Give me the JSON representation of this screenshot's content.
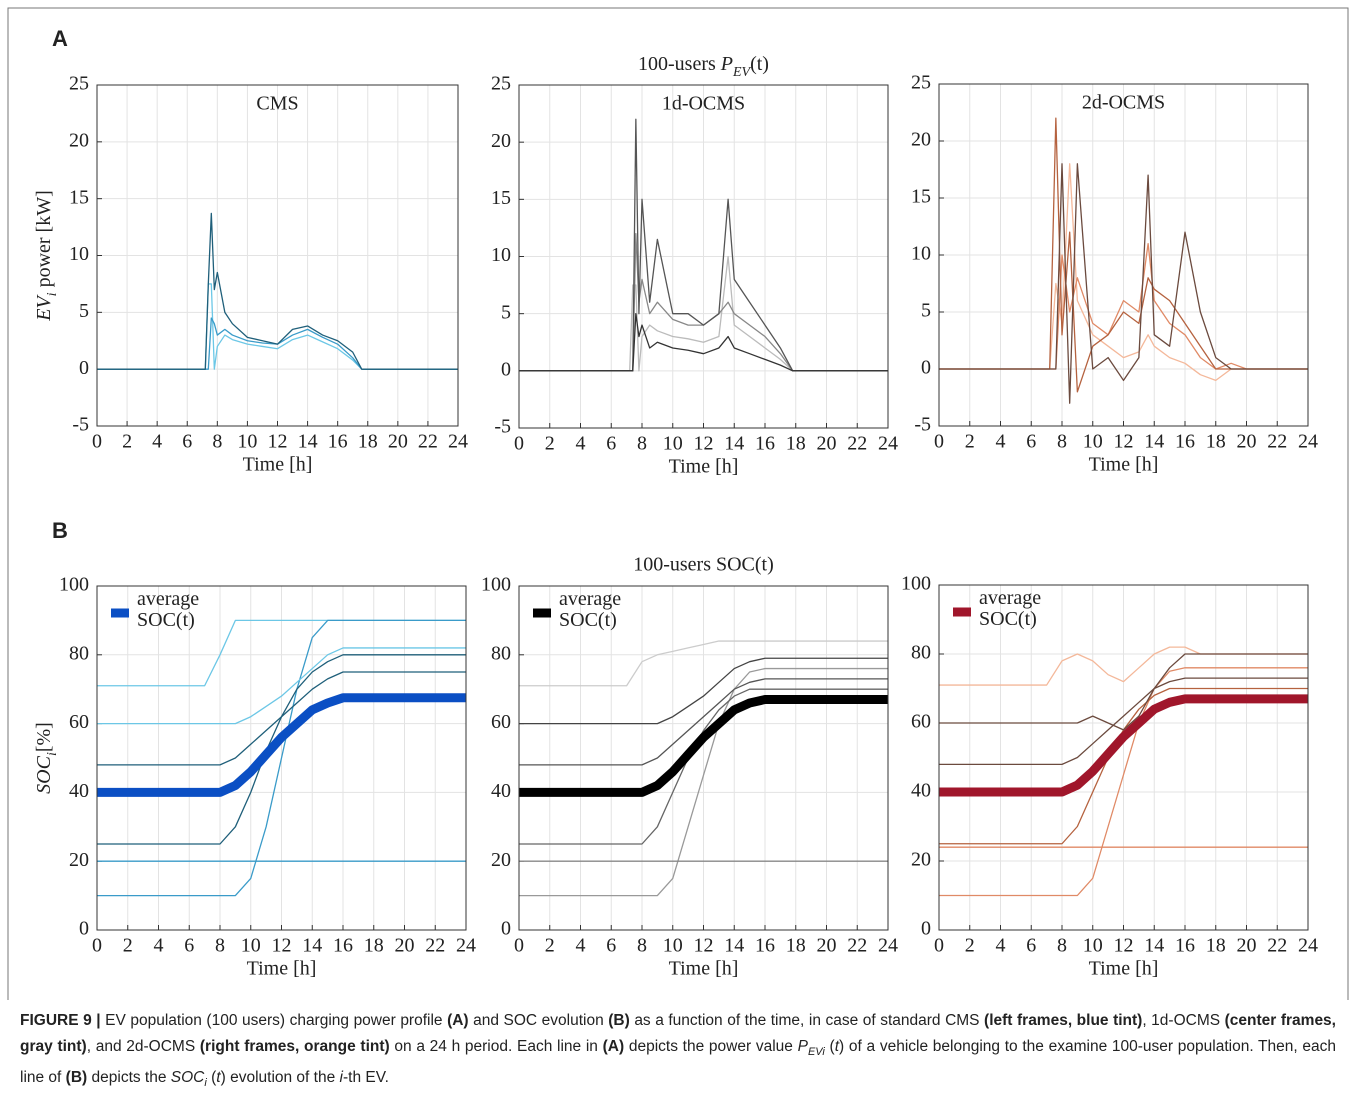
{
  "panel_labels": [
    "A",
    "B"
  ],
  "chart_data": [
    {
      "type": "line",
      "annotation": "CMS",
      "ylabel": [
        {
          "text": "EV",
          "style": "italic"
        },
        {
          "text": "i",
          "style": "sub"
        },
        {
          "text": " power [kW]",
          "style": "normal"
        }
      ],
      "xlabel": "Time [h]",
      "xlim": [
        0,
        24
      ],
      "ylim": [
        -5,
        25
      ],
      "xticks": [
        0,
        2,
        4,
        6,
        8,
        10,
        12,
        14,
        16,
        18,
        20,
        22,
        24
      ],
      "yticks": [
        -5,
        0,
        5,
        10,
        15,
        20,
        25
      ],
      "grid": true,
      "x": [
        0,
        7.2,
        7.4,
        7.6,
        7.8,
        8,
        8.5,
        9,
        10,
        11,
        12,
        13,
        14,
        15,
        16,
        17,
        17.6,
        24
      ],
      "series": [
        {
          "color": "#6cc7e6",
          "values": [
            0,
            0,
            7.5,
            7.5,
            0,
            2,
            3,
            2.6,
            2.2,
            2,
            1.8,
            2.6,
            3,
            2.4,
            1.8,
            0.8,
            0,
            0
          ]
        },
        {
          "color": "#3a9bc9",
          "values": [
            0,
            0,
            0,
            4.5,
            4,
            3,
            3.5,
            3,
            2.5,
            2.3,
            2.2,
            3,
            3.5,
            2.8,
            2.2,
            1,
            0,
            0
          ]
        },
        {
          "color": "#1f5f7a",
          "values": [
            0,
            0,
            7.5,
            13.7,
            7,
            8.5,
            5,
            4,
            2.8,
            2.5,
            2.2,
            3.5,
            3.8,
            3,
            2.5,
            1.5,
            0,
            0
          ]
        }
      ]
    },
    {
      "type": "line",
      "annotation": "1d-OCMS",
      "title": [
        {
          "text": "100-users ",
          "style": "normal"
        },
        {
          "text": "P",
          "style": "italic"
        },
        {
          "text": "EV",
          "style": "sub"
        },
        {
          "text": "(t)",
          "style": "normal"
        }
      ],
      "xlabel": "Time [h]",
      "xlim": [
        0,
        24
      ],
      "ylim": [
        -5,
        25
      ],
      "xticks": [
        0,
        2,
        4,
        6,
        8,
        10,
        12,
        14,
        16,
        18,
        20,
        22,
        24
      ],
      "yticks": [
        -5,
        0,
        5,
        10,
        15,
        20,
        25
      ],
      "grid": true,
      "x": [
        0,
        7.2,
        7.4,
        7.6,
        7.8,
        8,
        8.5,
        9,
        10,
        11,
        12,
        13,
        13.6,
        14,
        15,
        16,
        17,
        17.8,
        24
      ],
      "series": [
        {
          "color": "#bbbbbb",
          "values": [
            0,
            0,
            7.5,
            7.5,
            0,
            3,
            4,
            3.5,
            3,
            2.8,
            2.5,
            3,
            10,
            4,
            3,
            2,
            1,
            0,
            0
          ]
        },
        {
          "color": "#888888",
          "values": [
            0,
            0,
            0,
            12,
            6,
            8,
            5,
            6,
            4.5,
            4,
            4,
            5,
            6,
            5,
            4,
            3,
            1.5,
            0,
            0
          ]
        },
        {
          "color": "#555555",
          "values": [
            0,
            0,
            0,
            22,
            5,
            15,
            6,
            11.5,
            5,
            5,
            4,
            5,
            15,
            8,
            6,
            4,
            2,
            0,
            0
          ]
        },
        {
          "color": "#333333",
          "values": [
            0,
            0,
            0,
            5,
            3,
            4,
            2,
            2.5,
            2,
            1.8,
            1.5,
            2,
            3,
            2,
            1.5,
            1,
            0.5,
            0,
            0
          ]
        }
      ]
    },
    {
      "type": "line",
      "annotation": "2d-OCMS",
      "xlabel": "Time [h]",
      "xlim": [
        0,
        24
      ],
      "ylim": [
        -5,
        25
      ],
      "xticks": [
        0,
        2,
        4,
        6,
        8,
        10,
        12,
        14,
        16,
        18,
        20,
        22,
        24
      ],
      "yticks": [
        -5,
        0,
        5,
        10,
        15,
        20,
        25
      ],
      "grid": true,
      "x": [
        0,
        7.2,
        7.6,
        8,
        8.5,
        9,
        10,
        11,
        12,
        13,
        13.6,
        14,
        15,
        16,
        17,
        18,
        19,
        20,
        24
      ],
      "series": [
        {
          "color": "#f4b89a",
          "values": [
            0,
            0,
            7.5,
            4,
            18,
            6,
            3,
            2,
            1,
            1.5,
            3,
            2,
            1,
            0.5,
            -0.5,
            -1,
            0,
            0,
            0
          ]
        },
        {
          "color": "#e08a66",
          "values": [
            0,
            0,
            0,
            10,
            5,
            8,
            4,
            3,
            6,
            5,
            11,
            6,
            4,
            3,
            1,
            0,
            0.5,
            0,
            0
          ]
        },
        {
          "color": "#b5623f",
          "values": [
            0,
            0,
            22,
            3,
            12,
            -2,
            2,
            3,
            5,
            4,
            8,
            7,
            6,
            4,
            2,
            0,
            0,
            0,
            0
          ]
        },
        {
          "color": "#6b4a3e",
          "values": [
            0,
            0,
            0,
            18,
            -3,
            18,
            0,
            1,
            -1,
            1,
            17,
            3,
            2,
            12,
            5,
            1,
            0,
            0,
            0
          ]
        }
      ]
    },
    {
      "type": "line",
      "ylabel": [
        {
          "text": "SOC",
          "style": "italic"
        },
        {
          "text": "i",
          "style": "sub"
        },
        {
          "text": "[%]",
          "style": "normal"
        }
      ],
      "xlabel": "Time [h]",
      "xlim": [
        0,
        24
      ],
      "ylim": [
        0,
        100
      ],
      "xticks": [
        0,
        2,
        4,
        6,
        8,
        10,
        12,
        14,
        16,
        18,
        20,
        22,
        24
      ],
      "yticks": [
        0,
        20,
        40,
        60,
        80,
        100
      ],
      "grid": true,
      "legend": "upper left",
      "x": [
        0,
        7,
        8,
        9,
        10,
        11,
        12,
        13,
        14,
        15,
        16,
        17,
        18,
        24
      ],
      "series": [
        {
          "color": "#6cc7e6",
          "values": [
            71,
            71,
            80,
            90,
            90,
            90,
            90,
            90,
            90,
            90,
            90,
            90,
            90,
            90
          ]
        },
        {
          "color": "#3a9bc9",
          "values": [
            10,
            10,
            10,
            10,
            15,
            30,
            50,
            70,
            85,
            90,
            90,
            90,
            90,
            90
          ]
        },
        {
          "color": "#1f5f7a",
          "values": [
            25,
            25,
            25,
            30,
            40,
            52,
            62,
            70,
            75,
            78,
            80,
            80,
            80,
            80
          ]
        },
        {
          "color": "#6cc7e6",
          "values": [
            60,
            60,
            60,
            60,
            62,
            65,
            68,
            72,
            76,
            80,
            82,
            82,
            82,
            82
          ]
        },
        {
          "color": "#3a9bc9",
          "values": [
            20,
            20,
            20,
            20,
            20,
            20,
            20,
            20,
            20,
            20,
            20,
            20,
            20,
            20
          ]
        },
        {
          "color": "#1f5f7a",
          "values": [
            48,
            48,
            48,
            50,
            54,
            58,
            62,
            66,
            70,
            73,
            75,
            75,
            75,
            75
          ]
        },
        {
          "color": "#0b4fc4",
          "name": "average SOC(t)",
          "values": [
            40,
            40,
            40,
            42,
            46,
            51,
            56,
            60,
            64,
            66,
            67.5,
            67.5,
            67.5,
            67.5
          ]
        }
      ]
    },
    {
      "type": "line",
      "title": "100-users SOC(t)",
      "xlabel": "Time [h]",
      "xlim": [
        0,
        24
      ],
      "ylim": [
        0,
        100
      ],
      "xticks": [
        0,
        2,
        4,
        6,
        8,
        10,
        12,
        14,
        16,
        18,
        20,
        22,
        24
      ],
      "yticks": [
        0,
        20,
        40,
        60,
        80,
        100
      ],
      "grid": true,
      "legend": "upper left",
      "x": [
        0,
        7,
        8,
        9,
        10,
        11,
        12,
        13,
        14,
        15,
        16,
        17,
        18,
        24
      ],
      "series": [
        {
          "color": "#cccccc",
          "values": [
            71,
            71,
            78,
            80,
            81,
            82,
            83,
            84,
            84,
            84,
            84,
            84,
            84,
            84
          ]
        },
        {
          "color": "#999999",
          "values": [
            10,
            10,
            10,
            10,
            15,
            30,
            45,
            60,
            70,
            75,
            76,
            76,
            76,
            76
          ]
        },
        {
          "color": "#666666",
          "values": [
            25,
            25,
            25,
            30,
            40,
            50,
            58,
            64,
            68,
            70,
            70,
            70,
            70,
            70
          ]
        },
        {
          "color": "#444444",
          "values": [
            60,
            60,
            60,
            60,
            62,
            65,
            68,
            72,
            76,
            78,
            79,
            79,
            79,
            79
          ]
        },
        {
          "color": "#888888",
          "values": [
            20,
            20,
            20,
            20,
            20,
            20,
            20,
            20,
            20,
            20,
            20,
            20,
            20,
            20
          ]
        },
        {
          "color": "#555555",
          "values": [
            48,
            48,
            48,
            50,
            54,
            58,
            62,
            66,
            70,
            72,
            73,
            73,
            73,
            73
          ]
        },
        {
          "color": "#000000",
          "name": "average SOC(t)",
          "values": [
            40,
            40,
            40,
            42,
            46,
            51,
            56,
            60,
            64,
            66,
            67,
            67,
            67,
            67
          ]
        }
      ]
    },
    {
      "type": "line",
      "xlabel": "Time [h]",
      "xlim": [
        0,
        24
      ],
      "ylim": [
        0,
        100
      ],
      "xticks": [
        0,
        2,
        4,
        6,
        8,
        10,
        12,
        14,
        16,
        18,
        20,
        22,
        24
      ],
      "yticks": [
        0,
        20,
        40,
        60,
        80,
        100
      ],
      "grid": true,
      "legend": "upper left",
      "x": [
        0,
        7,
        8,
        9,
        10,
        11,
        12,
        13,
        14,
        15,
        16,
        17,
        18,
        24
      ],
      "series": [
        {
          "color": "#f4b89a",
          "values": [
            71,
            71,
            78,
            80,
            78,
            74,
            72,
            76,
            80,
            82,
            82,
            80,
            80,
            80
          ]
        },
        {
          "color": "#e08a66",
          "values": [
            10,
            10,
            10,
            10,
            15,
            30,
            45,
            60,
            70,
            75,
            76,
            76,
            76,
            76
          ]
        },
        {
          "color": "#b5623f",
          "values": [
            25,
            25,
            25,
            30,
            40,
            50,
            58,
            64,
            68,
            70,
            70,
            70,
            70,
            70
          ]
        },
        {
          "color": "#6b4a3e",
          "values": [
            60,
            60,
            60,
            60,
            62,
            60,
            58,
            62,
            70,
            76,
            80,
            80,
            80,
            80
          ]
        },
        {
          "color": "#e08a66",
          "values": [
            24,
            24,
            24,
            24,
            24,
            24,
            24,
            24,
            24,
            24,
            24,
            24,
            24,
            24
          ]
        },
        {
          "color": "#6b4a3e",
          "values": [
            48,
            48,
            48,
            50,
            54,
            58,
            62,
            66,
            70,
            72,
            73,
            73,
            73,
            73
          ]
        },
        {
          "color": "#a0162b",
          "name": "average SOC(t)",
          "values": [
            40,
            40,
            40,
            42,
            46,
            51,
            56,
            60,
            64,
            66,
            67,
            67,
            67,
            67
          ]
        }
      ]
    }
  ],
  "caption": [
    {
      "text": "FIGURE 9 |",
      "style": "bold"
    },
    {
      "text": " EV population (100 users) charging power profile ",
      "style": "normal"
    },
    {
      "text": "(A)",
      "style": "bold"
    },
    {
      "text": " and SOC evolution ",
      "style": "normal"
    },
    {
      "text": "(B)",
      "style": "bold"
    },
    {
      "text": " as a function of the time, in case of standard CMS ",
      "style": "normal"
    },
    {
      "text": "(left frames, blue tint)",
      "style": "bold"
    },
    {
      "text": ", 1d-OCMS ",
      "style": "normal"
    },
    {
      "text": "(center frames, gray tint)",
      "style": "bold"
    },
    {
      "text": ", and 2d-OCMS ",
      "style": "normal"
    },
    {
      "text": "(right frames, orange tint)",
      "style": "bold"
    },
    {
      "text": " on a 24 h period. Each line in ",
      "style": "normal"
    },
    {
      "text": "(A)",
      "style": "bold"
    },
    {
      "text": " depicts the power value ",
      "style": "normal"
    },
    {
      "text": "P",
      "style": "italic"
    },
    {
      "text": "EVi",
      "style": "sub"
    },
    {
      "text": " (",
      "style": "normal"
    },
    {
      "text": "t",
      "style": "italic"
    },
    {
      "text": ") of a vehicle belonging to the examine 100-user population. Then, each line of ",
      "style": "normal"
    },
    {
      "text": "(B)",
      "style": "bold"
    },
    {
      "text": " depicts the ",
      "style": "normal"
    },
    {
      "text": "SOC",
      "style": "italic"
    },
    {
      "text": "i",
      "style": "sub"
    },
    {
      "text": " (",
      "style": "normal"
    },
    {
      "text": "t",
      "style": "italic"
    },
    {
      "text": ") evolution of the ",
      "style": "normal"
    },
    {
      "text": "i",
      "style": "italic"
    },
    {
      "text": "-th EV.",
      "style": "normal"
    }
  ]
}
